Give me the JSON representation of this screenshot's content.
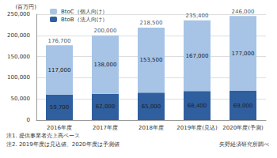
{
  "chart_data": {
    "type": "bar",
    "stacked": true,
    "y_label": "(百万円)",
    "categories": [
      "2016年度",
      "2017年度",
      "2018年度",
      "2019年度(見込)",
      "2020年度(予測)"
    ],
    "series": [
      {
        "name": "BtoB（法人向け）",
        "color": "#2f5f9e",
        "values": [
          59700,
          62000,
          65000,
          68400,
          69000
        ],
        "value_labels": [
          "59,700",
          "62,000",
          "65,000",
          "68,400",
          "69,000"
        ]
      },
      {
        "name": "BtoC（個人向け）",
        "color": "#a7c4e6",
        "values": [
          117000,
          138000,
          153500,
          167000,
          177000
        ],
        "value_labels": [
          "117,000",
          "138,000",
          "153,500",
          "167,000",
          "177,000"
        ]
      }
    ],
    "totals": {
      "values": [
        176700,
        200000,
        218500,
        235400,
        246000
      ],
      "value_labels": [
        "176,700",
        "200,000",
        "218,500",
        "235,400",
        "246,000"
      ]
    },
    "ylim": [
      0,
      250000
    ],
    "yticks": [
      0,
      {
        "value": 50000,
        "label": "50,000"
      },
      {
        "value": 100000,
        "label": "100,000"
      },
      {
        "value": 150000,
        "label": "150,000"
      },
      {
        "value": 200000,
        "label": "200,000"
      },
      {
        "value": 250000,
        "label": "250,000"
      }
    ],
    "grid": true,
    "legend": "upper left",
    "data_labels": true,
    "notes": [
      "注1. 提供事業者売上高ベース",
      "注2. 2019年度は見込値、2020年度は予測値"
    ],
    "source": "矢野経済研究所調べ"
  }
}
